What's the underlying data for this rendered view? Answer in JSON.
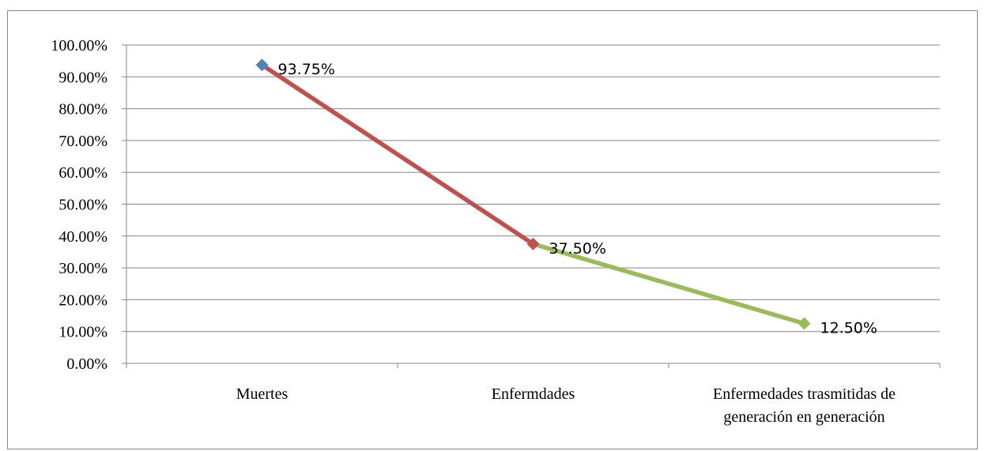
{
  "chart_data": {
    "type": "line",
    "title": "",
    "xlabel": "",
    "ylabel": "",
    "ylim": [
      0,
      100
    ],
    "yticks": [
      "0.00%",
      "10.00%",
      "20.00%",
      "30.00%",
      "40.00%",
      "50.00%",
      "60.00%",
      "70.00%",
      "80.00%",
      "90.00%",
      "100.00%"
    ],
    "categories": [
      [
        "Muertes"
      ],
      [
        "Enfermdades"
      ],
      [
        "Enfermedades trasmitidas de",
        "generación en generación"
      ]
    ],
    "values": [
      93.75,
      37.5,
      12.5
    ],
    "data_labels": [
      "93.75%",
      "37.50%",
      "12.50%"
    ],
    "segment_colors": [
      "#C0504D",
      "#9BBB59"
    ],
    "marker_colors": [
      "#4F81BD",
      "#C0504D",
      "#9BBB59"
    ],
    "grid": true,
    "legend": "none"
  }
}
